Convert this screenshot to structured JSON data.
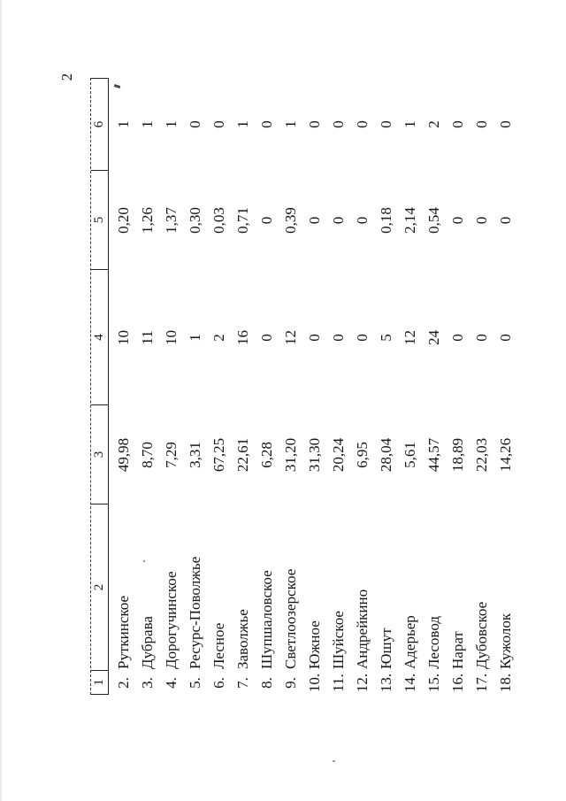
{
  "page_number": "2",
  "table": {
    "headers": [
      "1",
      "2",
      "3",
      "4",
      "5",
      "6"
    ],
    "rows": [
      {
        "num": "2.",
        "name": "Руткинское",
        "col3": "49,98",
        "col4": "10",
        "col5": "0,20",
        "col6": "1"
      },
      {
        "num": "3.",
        "name": "Дубрава",
        "col3": "8,70",
        "col4": "11",
        "col5": "1,26",
        "col6": "1"
      },
      {
        "num": "4.",
        "name": "Дорогучинское",
        "col3": "7,29",
        "col4": "10",
        "col5": "1,37",
        "col6": "1"
      },
      {
        "num": "5.",
        "name": "Ресурс-Поволжье",
        "col3": "3,31",
        "col4": "1",
        "col5": "0,30",
        "col6": "0"
      },
      {
        "num": "6.",
        "name": "Лесное",
        "col3": "67,25",
        "col4": "2",
        "col5": "0,03",
        "col6": "0"
      },
      {
        "num": "7.",
        "name": "Заволжье",
        "col3": "22,61",
        "col4": "16",
        "col5": "0,71",
        "col6": "1"
      },
      {
        "num": "8.",
        "name": "Шупшаловское",
        "col3": "6,28",
        "col4": "0",
        "col5": "0",
        "col6": "0"
      },
      {
        "num": "9.",
        "name": "Светлоозерское",
        "col3": "31,20",
        "col4": "12",
        "col5": "0,39",
        "col6": "1"
      },
      {
        "num": "10.",
        "name": "Южное",
        "col3": "31,30",
        "col4": "0",
        "col5": "0",
        "col6": "0"
      },
      {
        "num": "11.",
        "name": "Шуйское",
        "col3": "20,24",
        "col4": "0",
        "col5": "0",
        "col6": "0"
      },
      {
        "num": "12.",
        "name": "Андрейкино",
        "col3": "6,95",
        "col4": "0",
        "col5": "0",
        "col6": "0"
      },
      {
        "num": "13.",
        "name": "Юшут",
        "col3": "28,04",
        "col4": "5",
        "col5": "0,18",
        "col6": "0"
      },
      {
        "num": "14.",
        "name": "Адерьер",
        "col3": "5,61",
        "col4": "12",
        "col5": "2,14",
        "col6": "1"
      },
      {
        "num": "15.",
        "name": "Лесовод",
        "col3": "44,57",
        "col4": "24",
        "col5": "0,54",
        "col6": "2"
      },
      {
        "num": "16.",
        "name": "Нарат",
        "col3": "18,89",
        "col4": "0",
        "col5": "0",
        "col6": "0"
      },
      {
        "num": "17.",
        "name": "Дубовское",
        "col3": "22,03",
        "col4": "0",
        "col5": "0",
        "col6": "0"
      },
      {
        "num": "18.",
        "name": "Кужолок",
        "col3": "14,26",
        "col4": "0",
        "col5": "0",
        "col6": "0"
      }
    ]
  }
}
